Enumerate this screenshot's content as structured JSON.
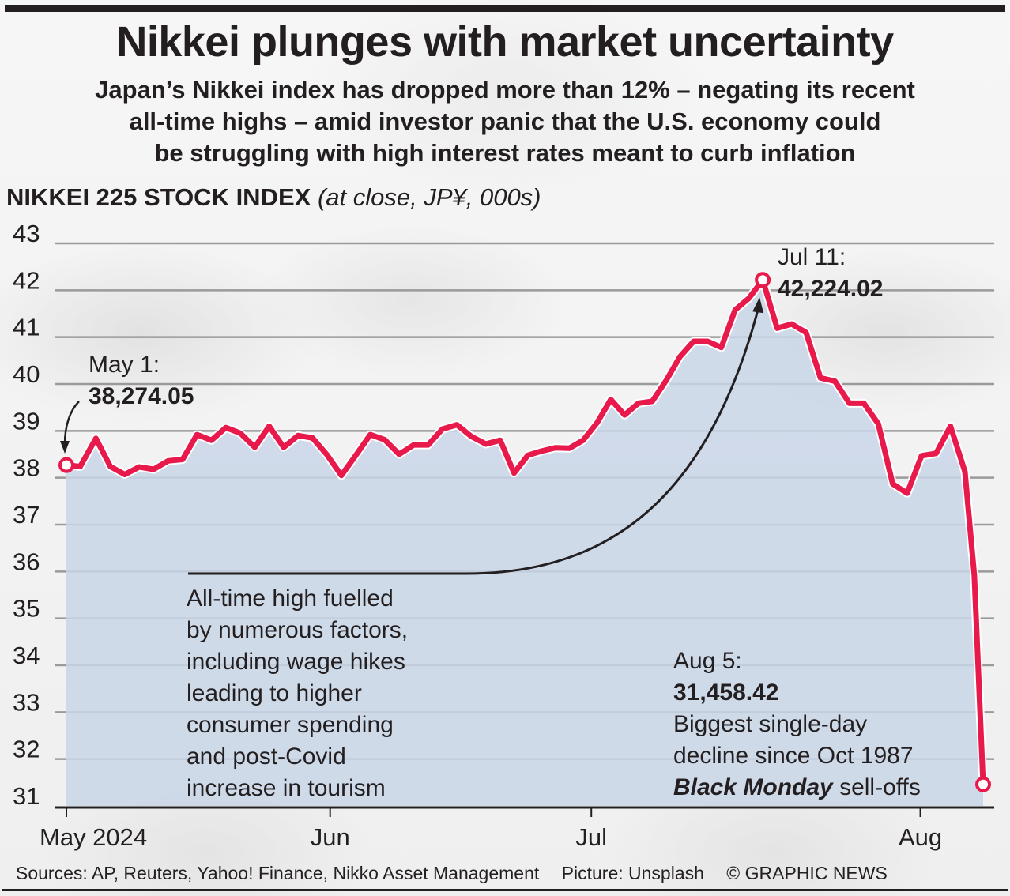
{
  "header": {
    "title": "Nikkei plunges with market uncertainty",
    "subtitle_lines": [
      "Japan’s Nikkei index has dropped more than 12% – negating its recent",
      "all-time highs – amid investor panic that the U.S. economy could",
      "be struggling with high interest rates meant to curb inflation"
    ]
  },
  "chart_data": {
    "type": "line",
    "title": "NIKKEI 225 STOCK INDEX",
    "ylabel": "(at close, JP¥, 000s)",
    "xlabel": "",
    "ylim": [
      31,
      43
    ],
    "yticks": [
      43,
      42,
      41,
      40,
      39,
      38,
      37,
      36,
      35,
      34,
      33,
      32,
      31
    ],
    "xticks": [
      "May 2024",
      "Jun",
      "Jul",
      "Aug"
    ],
    "grid": true,
    "area_fill": true,
    "series": [
      {
        "name": "Nikkei 225 close (JP¥ 000s)",
        "color": "#e8194b",
        "fill": "#c9d6e8",
        "values": [
          38.27,
          38.24,
          38.84,
          38.24,
          38.07,
          38.23,
          38.18,
          38.36,
          38.39,
          38.92,
          38.8,
          39.07,
          38.95,
          38.65,
          39.1,
          38.65,
          38.9,
          38.85,
          38.49,
          38.05,
          38.48,
          38.92,
          38.81,
          38.5,
          38.7,
          38.7,
          39.04,
          39.13,
          38.88,
          38.72,
          38.8,
          38.1,
          38.48,
          38.57,
          38.64,
          38.63,
          38.8,
          39.17,
          39.67,
          39.34,
          39.59,
          39.63,
          40.07,
          40.58,
          40.91,
          40.91,
          40.78,
          41.58,
          41.83,
          42.22,
          41.19,
          41.28,
          41.1,
          40.13,
          40.06,
          39.59,
          39.59,
          39.15,
          37.87,
          37.67,
          38.47,
          38.52,
          39.1,
          38.13,
          35.91,
          31.46
        ],
        "x_pos": [
          0,
          1.1,
          2.35,
          3.5,
          4.65,
          5.8,
          6.95,
          8.1,
          9.25,
          10.4,
          11.55,
          12.7,
          13.85,
          15.0,
          16.15,
          17.3,
          18.45,
          19.6,
          20.75,
          21.9,
          23.05,
          24.2,
          25.35,
          26.5,
          27.65,
          28.8,
          29.95,
          31.1,
          32.25,
          33.4,
          34.55,
          35.65,
          36.75,
          37.85,
          38.95,
          40.05,
          41.15,
          42.25,
          43.35,
          44.45,
          45.55,
          46.65,
          47.75,
          48.85,
          49.95,
          51.05,
          52.15,
          53.25,
          54.35,
          55.45,
          56.6,
          57.75,
          58.9,
          60.05,
          61.2,
          62.35,
          63.5,
          64.65,
          65.8,
          66.95,
          68.1,
          69.25,
          70.4,
          71.55,
          72.3,
          73.0
        ],
        "x_tick_pos": [
          0,
          21.0,
          41.8,
          68.0
        ]
      }
    ],
    "annotations": [
      {
        "label": "May 1:",
        "value": "38,274.05",
        "point_index": 0
      },
      {
        "label": "Jul 11:",
        "value": "42,224.02",
        "point_index": 49
      },
      {
        "label": "Aug 5:",
        "value": "31,458.42",
        "point_index": 65,
        "note_lines": [
          "Biggest single-day",
          "decline since Oct 1987"
        ],
        "note_em": "Black Monday",
        "note_tail": " sell-offs"
      }
    ],
    "callout_lines": [
      "All-time high fuelled",
      "by numerous factors,",
      "including wage hikes",
      "leading to higher",
      "consumer spending",
      "and post-Covid",
      "increase in tourism"
    ]
  },
  "footer": {
    "sources": "Sources: AP, Reuters, Yahoo! Finance, Nikko Asset Management",
    "picture": "Picture: Unsplash",
    "credit": "© GRAPHIC NEWS"
  }
}
